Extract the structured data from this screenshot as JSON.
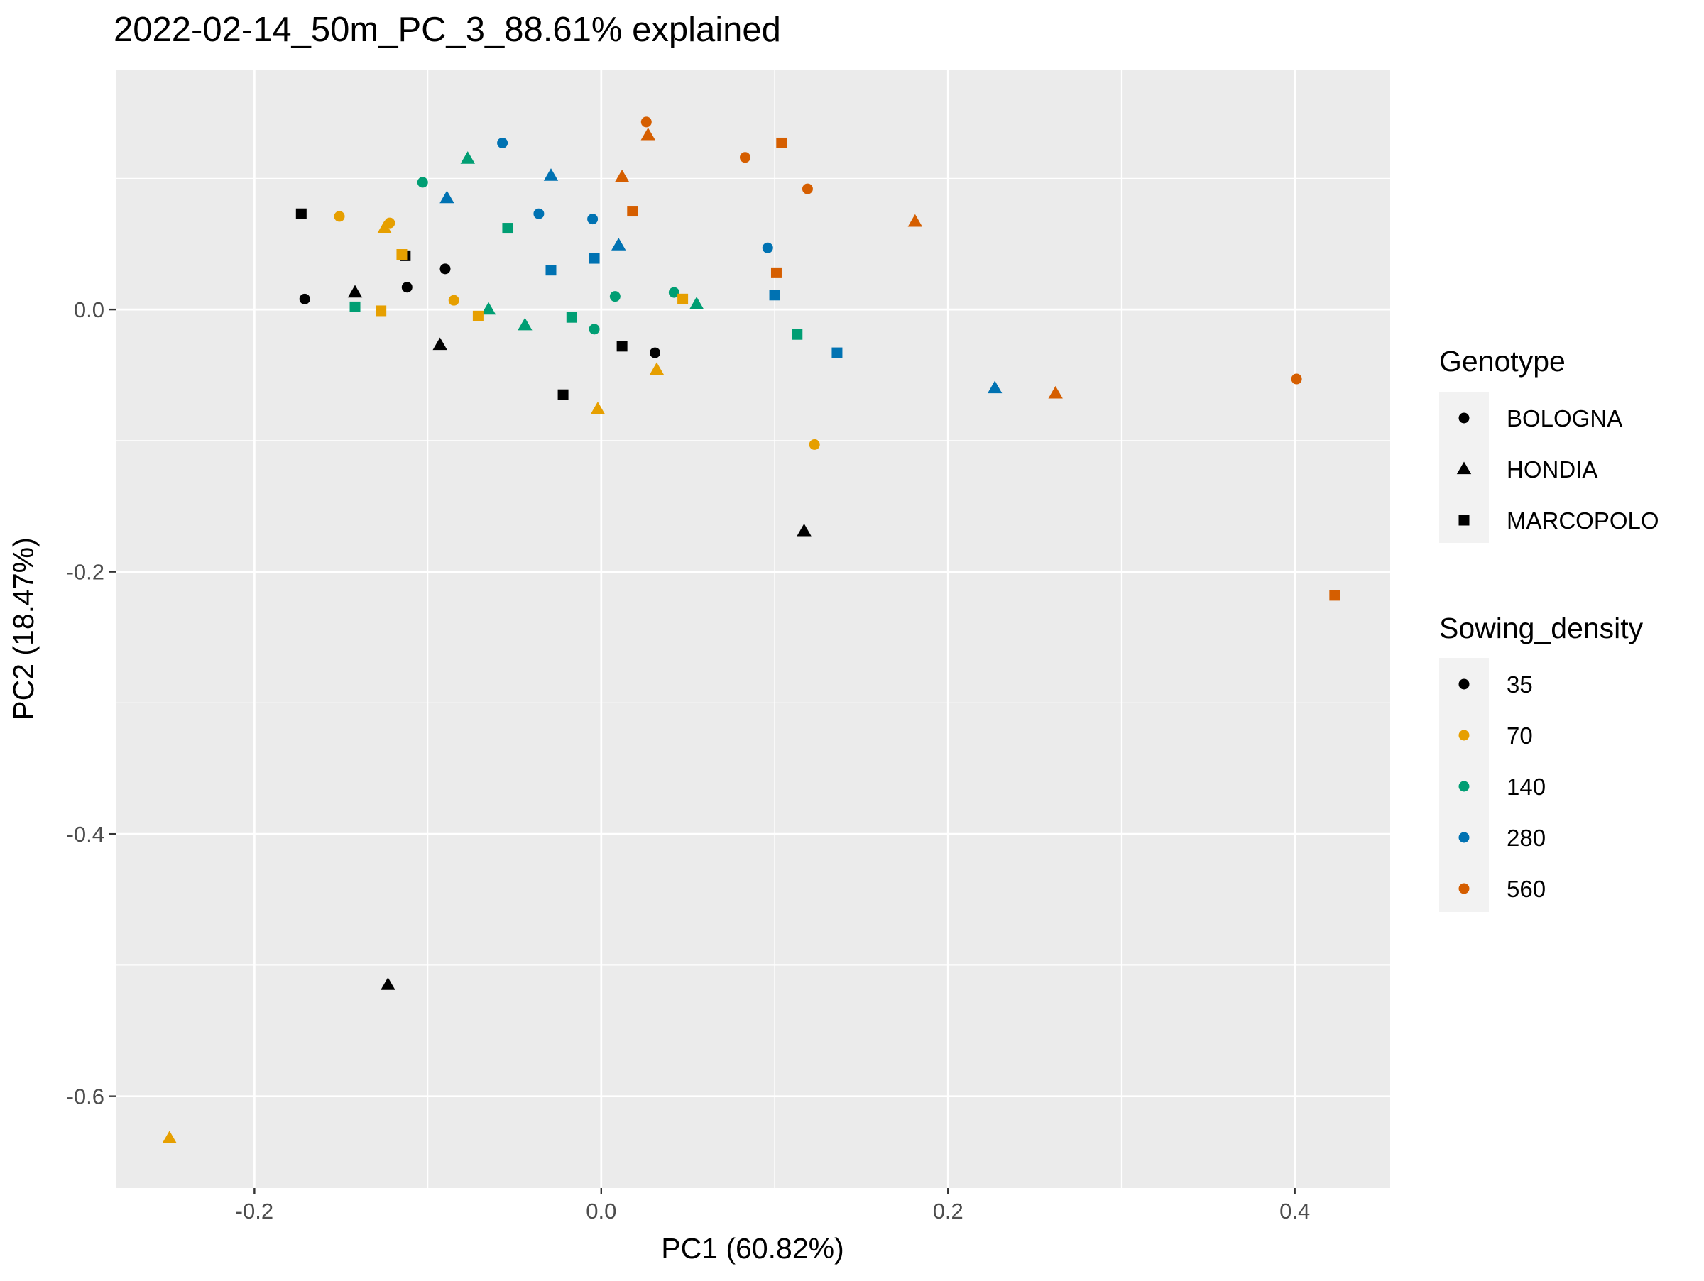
{
  "chart_data": {
    "type": "scatter",
    "title": "2022-02-14_50m_PC_3_88.61% explained",
    "xlabel": "PC1 (60.82%)",
    "ylabel": "PC2 (18.47%)",
    "xlim": [
      -0.28,
      0.455
    ],
    "ylim": [
      -0.67,
      0.183
    ],
    "xticks": [
      -0.2,
      0.0,
      0.2,
      0.4
    ],
    "xtick_labels": [
      "-0.2",
      "0.0",
      "0.2",
      "0.4"
    ],
    "yticks": [
      0.0,
      -0.2,
      -0.4,
      -0.6
    ],
    "ytick_labels": [
      "0.0",
      "-0.2",
      "-0.4",
      "-0.6"
    ],
    "grid": true,
    "legend_position": "right",
    "legends": {
      "shape": {
        "title": "Genotype",
        "items": [
          {
            "label": "BOLOGNA",
            "shape": "circle"
          },
          {
            "label": "HONDIA",
            "shape": "triangle"
          },
          {
            "label": "MARCOPOLO",
            "shape": "square"
          }
        ]
      },
      "color": {
        "title": "Sowing_density",
        "items": [
          {
            "label": "35",
            "color": "#000000"
          },
          {
            "label": "70",
            "color": "#E69F00"
          },
          {
            "label": "140",
            "color": "#009E73"
          },
          {
            "label": "280",
            "color": "#0072B2"
          },
          {
            "label": "560",
            "color": "#D55E00"
          }
        ]
      }
    },
    "points": [
      {
        "x": -0.171,
        "y": 0.008,
        "genotype": "BOLOGNA",
        "density": "35"
      },
      {
        "x": -0.112,
        "y": 0.017,
        "genotype": "BOLOGNA",
        "density": "35"
      },
      {
        "x": -0.09,
        "y": 0.031,
        "genotype": "BOLOGNA",
        "density": "35"
      },
      {
        "x": 0.031,
        "y": -0.033,
        "genotype": "BOLOGNA",
        "density": "35"
      },
      {
        "x": -0.151,
        "y": 0.071,
        "genotype": "BOLOGNA",
        "density": "70"
      },
      {
        "x": -0.122,
        "y": 0.066,
        "genotype": "BOLOGNA",
        "density": "70"
      },
      {
        "x": -0.085,
        "y": 0.007,
        "genotype": "BOLOGNA",
        "density": "70"
      },
      {
        "x": 0.123,
        "y": -0.103,
        "genotype": "BOLOGNA",
        "density": "70"
      },
      {
        "x": -0.103,
        "y": 0.097,
        "genotype": "BOLOGNA",
        "density": "140"
      },
      {
        "x": 0.008,
        "y": 0.01,
        "genotype": "BOLOGNA",
        "density": "140"
      },
      {
        "x": 0.042,
        "y": 0.013,
        "genotype": "BOLOGNA",
        "density": "140"
      },
      {
        "x": -0.004,
        "y": -0.015,
        "genotype": "BOLOGNA",
        "density": "140"
      },
      {
        "x": -0.057,
        "y": 0.127,
        "genotype": "BOLOGNA",
        "density": "280"
      },
      {
        "x": -0.036,
        "y": 0.073,
        "genotype": "BOLOGNA",
        "density": "280"
      },
      {
        "x": -0.005,
        "y": 0.069,
        "genotype": "BOLOGNA",
        "density": "280"
      },
      {
        "x": 0.096,
        "y": 0.047,
        "genotype": "BOLOGNA",
        "density": "280"
      },
      {
        "x": 0.026,
        "y": 0.143,
        "genotype": "BOLOGNA",
        "density": "560"
      },
      {
        "x": 0.083,
        "y": 0.116,
        "genotype": "BOLOGNA",
        "density": "560"
      },
      {
        "x": 0.119,
        "y": 0.092,
        "genotype": "BOLOGNA",
        "density": "560"
      },
      {
        "x": 0.401,
        "y": -0.053,
        "genotype": "BOLOGNA",
        "density": "560"
      },
      {
        "x": -0.142,
        "y": 0.013,
        "genotype": "HONDIA",
        "density": "35"
      },
      {
        "x": -0.093,
        "y": -0.027,
        "genotype": "HONDIA",
        "density": "35"
      },
      {
        "x": 0.117,
        "y": -0.169,
        "genotype": "HONDIA",
        "density": "35"
      },
      {
        "x": -0.123,
        "y": -0.515,
        "genotype": "HONDIA",
        "density": "35"
      },
      {
        "x": -0.125,
        "y": 0.062,
        "genotype": "HONDIA",
        "density": "70"
      },
      {
        "x": -0.002,
        "y": -0.076,
        "genotype": "HONDIA",
        "density": "70"
      },
      {
        "x": 0.032,
        "y": -0.046,
        "genotype": "HONDIA",
        "density": "70"
      },
      {
        "x": -0.249,
        "y": -0.632,
        "genotype": "HONDIA",
        "density": "70"
      },
      {
        "x": -0.077,
        "y": 0.115,
        "genotype": "HONDIA",
        "density": "140"
      },
      {
        "x": -0.065,
        "y": 0.0,
        "genotype": "HONDIA",
        "density": "140"
      },
      {
        "x": -0.044,
        "y": -0.012,
        "genotype": "HONDIA",
        "density": "140"
      },
      {
        "x": 0.055,
        "y": 0.004,
        "genotype": "HONDIA",
        "density": "140"
      },
      {
        "x": -0.089,
        "y": 0.085,
        "genotype": "HONDIA",
        "density": "280"
      },
      {
        "x": -0.029,
        "y": 0.102,
        "genotype": "HONDIA",
        "density": "280"
      },
      {
        "x": 0.01,
        "y": 0.049,
        "genotype": "HONDIA",
        "density": "280"
      },
      {
        "x": 0.227,
        "y": -0.06,
        "genotype": "HONDIA",
        "density": "280"
      },
      {
        "x": 0.027,
        "y": 0.133,
        "genotype": "HONDIA",
        "density": "560"
      },
      {
        "x": 0.012,
        "y": 0.101,
        "genotype": "HONDIA",
        "density": "560"
      },
      {
        "x": 0.181,
        "y": 0.067,
        "genotype": "HONDIA",
        "density": "560"
      },
      {
        "x": 0.262,
        "y": -0.064,
        "genotype": "HONDIA",
        "density": "560"
      },
      {
        "x": -0.173,
        "y": 0.073,
        "genotype": "MARCOPOLO",
        "density": "35"
      },
      {
        "x": -0.113,
        "y": 0.041,
        "genotype": "MARCOPOLO",
        "density": "35"
      },
      {
        "x": 0.012,
        "y": -0.028,
        "genotype": "MARCOPOLO",
        "density": "35"
      },
      {
        "x": -0.022,
        "y": -0.065,
        "genotype": "MARCOPOLO",
        "density": "35"
      },
      {
        "x": -0.115,
        "y": 0.042,
        "genotype": "MARCOPOLO",
        "density": "70"
      },
      {
        "x": -0.127,
        "y": -0.001,
        "genotype": "MARCOPOLO",
        "density": "70"
      },
      {
        "x": -0.071,
        "y": -0.005,
        "genotype": "MARCOPOLO",
        "density": "70"
      },
      {
        "x": 0.047,
        "y": 0.008,
        "genotype": "MARCOPOLO",
        "density": "70"
      },
      {
        "x": -0.142,
        "y": 0.002,
        "genotype": "MARCOPOLO",
        "density": "140"
      },
      {
        "x": -0.054,
        "y": 0.062,
        "genotype": "MARCOPOLO",
        "density": "140"
      },
      {
        "x": -0.017,
        "y": -0.006,
        "genotype": "MARCOPOLO",
        "density": "140"
      },
      {
        "x": 0.113,
        "y": -0.019,
        "genotype": "MARCOPOLO",
        "density": "140"
      },
      {
        "x": -0.029,
        "y": 0.03,
        "genotype": "MARCOPOLO",
        "density": "280"
      },
      {
        "x": -0.004,
        "y": 0.039,
        "genotype": "MARCOPOLO",
        "density": "280"
      },
      {
        "x": 0.1,
        "y": 0.011,
        "genotype": "MARCOPOLO",
        "density": "280"
      },
      {
        "x": 0.136,
        "y": -0.033,
        "genotype": "MARCOPOLO",
        "density": "280"
      },
      {
        "x": 0.104,
        "y": 0.127,
        "genotype": "MARCOPOLO",
        "density": "560"
      },
      {
        "x": 0.018,
        "y": 0.075,
        "genotype": "MARCOPOLO",
        "density": "560"
      },
      {
        "x": 0.101,
        "y": 0.028,
        "genotype": "MARCOPOLO",
        "density": "560"
      },
      {
        "x": 0.423,
        "y": -0.218,
        "genotype": "MARCOPOLO",
        "density": "560"
      }
    ]
  }
}
